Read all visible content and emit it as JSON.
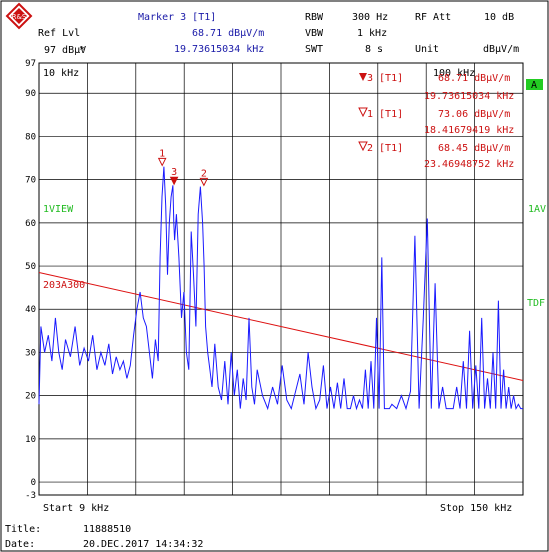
{
  "header": {
    "ref_lvl_label": "Ref Lvl",
    "ref_lvl_value": "97 dBµV",
    "ref_lvl_star": "*",
    "marker_title": "Marker 3 [T1]",
    "marker_level": "68.71 dBµV/m",
    "marker_freq": "19.73615034 kHz",
    "rbw_label": "RBW",
    "rbw_value": "300 Hz",
    "vbw_label": "VBW",
    "vbw_value": "1 kHz",
    "swt_label": "SWT",
    "swt_value": "8 s",
    "rf_att_label": "RF Att",
    "rf_att_value": "10 dB",
    "unit_label": "Unit",
    "unit_value": "dBµV/m"
  },
  "side_labels": {
    "a": "A",
    "view": "1VIEW",
    "iav": "1AV",
    "tdf": "TDF",
    "limit": "203A300"
  },
  "marker_table": [
    {
      "label": "3 [T1]",
      "level": "68.71 dBµV/m",
      "freq": "19.73615034 kHz"
    },
    {
      "label": "1 [T1]",
      "level": "73.06 dBµV/m",
      "freq": "18.41679419 kHz"
    },
    {
      "label": "2 [T1]",
      "level": "68.45 dBµV/m",
      "freq": "23.46948752 kHz"
    }
  ],
  "footer": {
    "start": "Start 9 kHz",
    "stop": "Stop 150 kHz",
    "title_label": "Title:",
    "title_value": "11888510",
    "date_label": "Date:",
    "date_value": "20.DEC.2017  14:34:32"
  },
  "colors": {
    "trace": "#1a1aff",
    "limit": "#dd1111",
    "grid": "#000000",
    "text_blue": "#1a1aa8",
    "text_red": "#cc1111",
    "text_green": "#22bb22",
    "badge": "#22cc22"
  },
  "chart_data": {
    "type": "line",
    "xlabel": "",
    "ylabel": "",
    "xlim": [
      9,
      150
    ],
    "ylim": [
      -3,
      97
    ],
    "x_grid_label": "10 kHz",
    "x_grid_label_2": "100 kHz",
    "ytick_labels": [
      "97",
      "90",
      "80",
      "70",
      "60",
      "50",
      "40",
      "30",
      "20",
      "10",
      "0",
      "-3"
    ],
    "yticks": [
      97,
      90,
      80,
      70,
      60,
      50,
      40,
      30,
      20,
      10,
      0,
      -3
    ],
    "x_scale": "log",
    "x_log_edges": [
      9,
      150
    ],
    "markers": [
      {
        "id": "1",
        "x": 18.4168,
        "y": 73.06
      },
      {
        "id": "3",
        "x": 19.7362,
        "y": 68.71
      },
      {
        "id": "2",
        "x": 23.4695,
        "y": 68.45
      }
    ],
    "limit_line": {
      "name": "203A300",
      "x": [
        9,
        150
      ],
      "y": [
        48.5,
        23.5
      ]
    },
    "series": [
      {
        "x": [
          9,
          9.1,
          9.3,
          9.5,
          9.7,
          9.9,
          10.1,
          10.3,
          10.5,
          10.8,
          11.1,
          11.4,
          11.7,
          12.0,
          12.3,
          12.6,
          12.9,
          13.2,
          13.5,
          13.8,
          14.1,
          14.4,
          14.7,
          15.0,
          15.3,
          15.6,
          15.9,
          16.2,
          16.5,
          16.8,
          17.1,
          17.4,
          17.7,
          18.0,
          18.2,
          18.4,
          18.6,
          18.8,
          19.0,
          19.2,
          19.4,
          19.6,
          19.7,
          19.8,
          20.0,
          20.3,
          20.6,
          20.9,
          21.2,
          21.5,
          21.8,
          22.1,
          22.4,
          22.7,
          23.0,
          23.3,
          23.5,
          23.7,
          24.0,
          24.3,
          24.6,
          25.0,
          25.5,
          26.0,
          26.5,
          27.0,
          27.5,
          28.0,
          28.5,
          29.0,
          29.5,
          30.0,
          30.5,
          31.0,
          31.5,
          32.0,
          33.0,
          34.0,
          35.0,
          36.0,
          37.0,
          38.0,
          39.0,
          40.0,
          41.0,
          42.0,
          43.0,
          44.0,
          45.0,
          46.0,
          47.0,
          48.0,
          49.0,
          50.0,
          51.0,
          52.0,
          53.0,
          54.0,
          55.0,
          56.0,
          57.0,
          58.0,
          59.0,
          60.0,
          61.0,
          62.0,
          63.0,
          64.0,
          65.0,
          66.0,
          67.0,
          68.0,
          69.0,
          70.0,
          72.0,
          74.0,
          76.0,
          78.0,
          80.0,
          82.0,
          84.0,
          86.0,
          88.0,
          90.0,
          92.0,
          94.0,
          96.0,
          98.0,
          100.0,
          102.0,
          104.0,
          106.0,
          108.0,
          110.0,
          112.0,
          114.0,
          116.0,
          118.0,
          120.0,
          122.0,
          124.0,
          126.0,
          128.0,
          130.0,
          132.0,
          134.0,
          136.0,
          138.0,
          140.0,
          142.0,
          144.0,
          146.0,
          148.0,
          150.0
        ],
        "y": [
          18,
          36,
          30,
          34,
          28,
          38,
          30,
          26,
          33,
          29,
          36,
          27,
          31,
          28,
          34,
          26,
          30,
          27,
          32,
          25,
          29,
          26,
          28,
          24,
          27,
          34,
          40,
          44,
          38,
          36,
          30,
          24,
          33,
          28,
          52,
          66,
          73,
          64,
          48,
          60,
          66,
          68.7,
          60,
          56,
          62,
          52,
          38,
          44,
          30,
          26,
          58,
          48,
          36,
          62,
          68.4,
          60,
          50,
          36,
          30,
          26,
          22,
          32,
          22,
          19,
          28,
          18,
          30,
          20,
          26,
          17,
          24,
          19,
          38,
          22,
          18,
          26,
          20,
          17,
          22,
          18,
          27,
          19,
          17,
          21,
          25,
          18,
          30,
          22,
          17,
          19,
          27,
          17,
          22,
          17,
          23,
          17,
          24,
          17,
          17,
          20,
          17,
          19,
          17,
          26,
          17,
          28,
          17,
          38,
          17,
          52,
          17,
          17,
          17,
          18,
          17,
          20,
          17,
          21,
          57,
          17,
          38,
          61,
          17,
          46,
          17,
          22,
          17,
          17,
          17,
          22,
          17,
          28,
          17,
          35,
          17,
          27,
          17,
          38,
          17,
          24,
          17,
          30,
          17,
          42,
          17,
          26,
          17,
          22,
          17,
          20,
          17,
          18,
          17,
          17
        ]
      }
    ]
  }
}
